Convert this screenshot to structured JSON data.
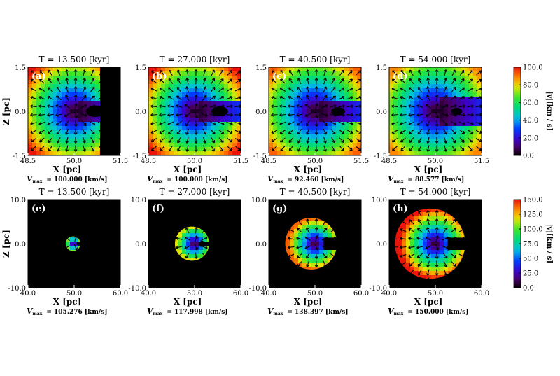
{
  "figure": {
    "rows": [
      {
        "ylabel": "Z [pc]",
        "xlabel": "X [pc]",
        "x_ticks": [
          "48.5",
          "50.0",
          "51.5"
        ],
        "y_ticks": [
          "1.5",
          "0.0",
          "-1.5"
        ],
        "xlim": [
          48.5,
          51.5
        ],
        "ylim": [
          -1.5,
          1.5
        ],
        "colorbar": {
          "label": "|v|[km / s]",
          "ticks": [
            "100.0",
            "80.0",
            "60.0",
            "40.0",
            "20.0",
            "0.0"
          ],
          "range": [
            0,
            100
          ]
        },
        "panels": [
          {
            "title": "T =    13.500 [kyr]",
            "label": "(a)",
            "vmax_label": "V",
            "vmax_sub": "max",
            "vmax_text": "=    100.000 [km/s]",
            "vmax": 100.0,
            "velocity_max_color_value": 100,
            "front_reach": 0.78,
            "wrap": true
          },
          {
            "title": "T =    27.000 [kyr]",
            "label": "(b)",
            "vmax_label": "V",
            "vmax_sub": "max",
            "vmax_text": "=    100.000 [km/s]",
            "vmax": 100.0,
            "front_reach": 0.7,
            "wrap": false
          },
          {
            "title": "T =    40.500 [kyr]",
            "label": "(c)",
            "vmax_label": "V",
            "vmax_sub": "max",
            "vmax_text": "=     92.460 [km/s]",
            "vmax": 92.46,
            "front_reach": 0.62,
            "wrap": false
          },
          {
            "title": "T =    54.000 [kyr]",
            "label": "(d)",
            "vmax_label": "V",
            "vmax_sub": "max",
            "vmax_text": "=     88.577 [km/s]",
            "vmax": 88.577,
            "front_reach": 0.55,
            "wrap": false
          }
        ]
      },
      {
        "ylabel": "Z [pc]",
        "xlabel": "X [pc]",
        "x_ticks": [
          "40.0",
          "50.0",
          "60.0"
        ],
        "y_ticks": [
          "10.0",
          "0.0",
          "-10.0"
        ],
        "xlim": [
          40,
          60
        ],
        "ylim": [
          -10,
          10
        ],
        "colorbar": {
          "label": "|v|[km / s]",
          "ticks": [
            "150.0",
            "125.0",
            "100.0",
            "75.0",
            "50.0",
            "25.0",
            "0.0"
          ],
          "range": [
            0,
            150
          ]
        },
        "panels": [
          {
            "title": "T =    13.500 [kyr]",
            "label": "(e)",
            "vmax_label": "V",
            "vmax_sub": "max",
            "vmax_text": "=    105.276 [km/s]",
            "vmax": 105.276,
            "radius": 1.6
          },
          {
            "title": "T =    27.000 [kyr]",
            "label": "(f)",
            "vmax_label": "V",
            "vmax_sub": "max",
            "vmax_text": "=    117.998 [km/s]",
            "vmax": 117.998,
            "radius": 3.7
          },
          {
            "title": "T =    40.500 [kyr]",
            "label": "(g)",
            "vmax_label": "V",
            "vmax_sub": "max",
            "vmax_text": "=    138.397 [km/s]",
            "vmax": 138.397,
            "radius": 5.6
          },
          {
            "title": "T =    54.000 [kyr]",
            "label": "(h)",
            "vmax_label": "V",
            "vmax_sub": "max",
            "vmax_text": "=    150.000 [km/s]",
            "vmax": 150.0,
            "radius": 7.6
          }
        ]
      }
    ]
  }
}
